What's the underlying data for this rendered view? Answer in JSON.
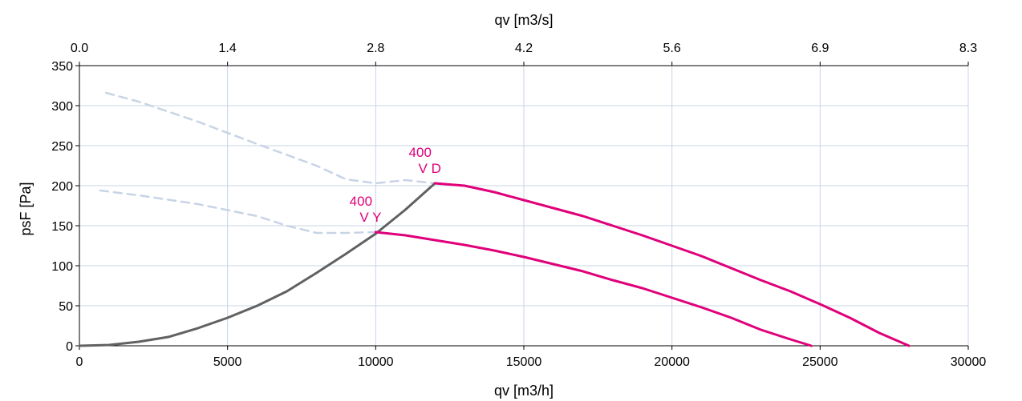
{
  "chart_data": {
    "type": "line",
    "title": "",
    "xlabel": "qv [m3/h]",
    "x2label": "qv [m3/s]",
    "ylabel": "psF [Pa]",
    "xlim": [
      0,
      30000
    ],
    "ylim": [
      0,
      350
    ],
    "x_ticks": [
      0,
      5000,
      10000,
      15000,
      20000,
      25000,
      30000
    ],
    "x_tick_labels": [
      "0",
      "5000",
      "10000",
      "15000",
      "20000",
      "25000",
      "30000"
    ],
    "x2_tick_labels": [
      "0.0",
      "1.4",
      "2.8",
      "4.2",
      "5.6",
      "6.9",
      "8.3"
    ],
    "y_ticks": [
      0,
      50,
      100,
      150,
      200,
      250,
      300,
      350
    ],
    "y_tick_labels": [
      "0",
      "50",
      "100",
      "150",
      "200",
      "250",
      "300",
      "350"
    ],
    "grid": true,
    "colors": {
      "operating": "#e0007a",
      "system": "#616161",
      "stall": "#c8d4e6",
      "grid": "#c8d4e6",
      "axis": "#000000"
    },
    "series": [
      {
        "label_lines": [
          "400",
          "V D"
        ],
        "kind": "operating",
        "x": [
          12000,
          13000,
          14000,
          15000,
          16000,
          17000,
          18000,
          19000,
          20000,
          21000,
          22000,
          23000,
          24000,
          25000,
          26000,
          27000,
          28000
        ],
        "y": [
          203,
          200,
          192,
          182,
          172,
          162,
          150,
          138,
          125,
          112,
          97,
          82,
          68,
          52,
          35,
          16,
          0
        ]
      },
      {
        "label_lines": [
          "400",
          "V Y"
        ],
        "kind": "operating",
        "x": [
          10000,
          11000,
          12000,
          13000,
          14000,
          15000,
          16000,
          17000,
          18000,
          19000,
          20000,
          21000,
          22000,
          23000,
          24000,
          24700
        ],
        "y": [
          142,
          138,
          132,
          126,
          119,
          111,
          102,
          93,
          82,
          72,
          60,
          48,
          35,
          20,
          8,
          0
        ]
      },
      {
        "kind": "system",
        "x": [
          0,
          1000,
          2000,
          3000,
          4000,
          5000,
          6000,
          7000,
          8000,
          9000,
          10000,
          11000,
          12000
        ],
        "y": [
          0,
          1,
          5,
          11,
          22,
          35,
          50,
          68,
          91,
          115,
          140,
          170,
          203
        ]
      },
      {
        "kind": "stall",
        "x": [
          900,
          2000,
          4000,
          6000,
          8000,
          9000,
          10000,
          11000,
          12000
        ],
        "y": [
          316,
          305,
          280,
          252,
          225,
          208,
          203,
          207,
          203
        ]
      },
      {
        "kind": "stall",
        "x": [
          700,
          2000,
          4000,
          6000,
          7000,
          8000,
          9000,
          10000
        ],
        "y": [
          194,
          188,
          177,
          162,
          150,
          141,
          141,
          142
        ]
      }
    ],
    "annotations": [
      {
        "lines": [
          "400",
          "V D"
        ],
        "x": 11500,
        "y": 218,
        "color": "#e0007a"
      },
      {
        "lines": [
          "400",
          "V Y"
        ],
        "x": 9500,
        "y": 157,
        "color": "#e0007a"
      }
    ]
  }
}
